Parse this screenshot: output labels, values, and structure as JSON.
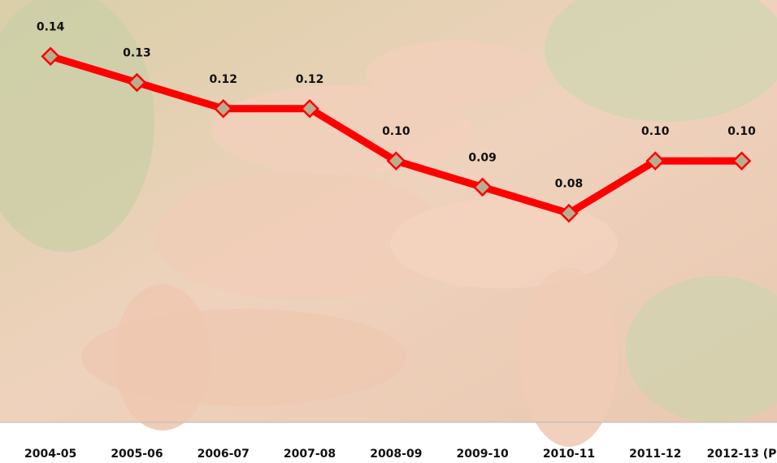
{
  "chart_data": {
    "type": "line",
    "categories": [
      "2004-05",
      "2005-06",
      "2006-07",
      "2007-08",
      "2008-09",
      "2009-10",
      "2010-11",
      "2011-12",
      "2012-13 (P"
    ],
    "series": [
      {
        "color": "#ff0000",
        "values": [
          0.14,
          0.13,
          0.12,
          0.12,
          0.1,
          0.09,
          0.08,
          0.1,
          0.1
        ],
        "value_labels": [
          "0.14",
          "0.13",
          "0.12",
          "0.12",
          "0.10",
          "0.09",
          "0.08",
          "0.10",
          "0.10"
        ]
      }
    ],
    "ylim": [
      0,
      0.16
    ]
  }
}
